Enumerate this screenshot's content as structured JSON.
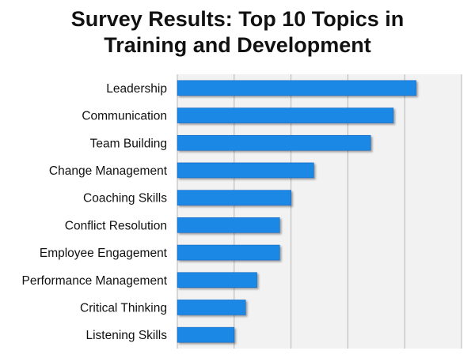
{
  "title_line1": "Survey Results: Top 10 Topics in",
  "title_line2": "Training and Development",
  "chart_data": {
    "type": "bar",
    "orientation": "horizontal",
    "title": "Survey Results: Top 10 Topics in Training and Development",
    "categories": [
      "Leadership",
      "Communication",
      "Team Building",
      "Change Management",
      "Coaching Skills",
      "Conflict Resolution",
      "Employee Engagement",
      "Performance Management",
      "Critical Thinking",
      "Listening Skills"
    ],
    "values": [
      84,
      76,
      68,
      48,
      40,
      36,
      36,
      28,
      24,
      20
    ],
    "xlim": [
      0,
      100
    ],
    "x_gridlines": [
      0,
      20,
      40,
      60,
      80,
      100
    ],
    "x_tick_labels_shown": false,
    "grid": true,
    "legend": "none",
    "colors": {
      "bar": "#1E88E5",
      "bar_edge": "#1565C0",
      "plot_background": "#F2F2F2",
      "gridline": "#B5B5B5"
    }
  }
}
